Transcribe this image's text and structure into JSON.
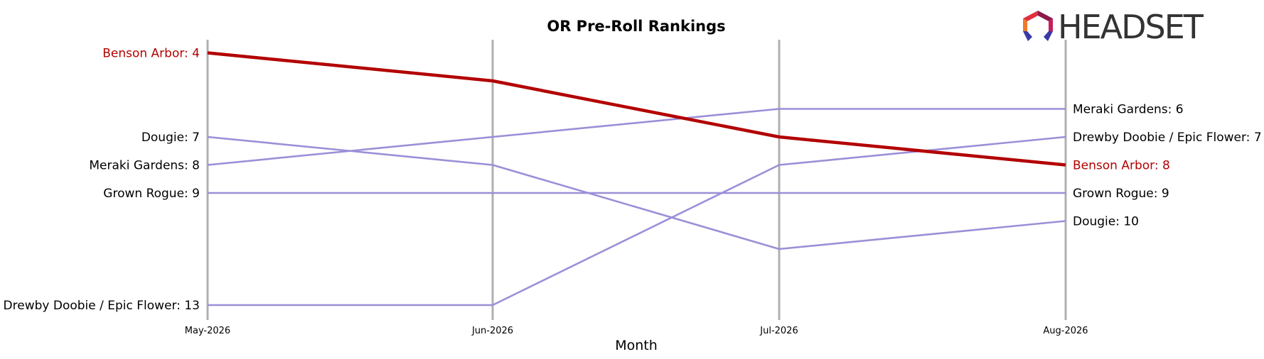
{
  "chart_data": {
    "type": "line",
    "title": "OR Pre-Roll Rankings",
    "xlabel": "Month",
    "ylabel": "",
    "categories": [
      "May-2026",
      "Jun-2026",
      "Jul-2026",
      "Aug-2026"
    ],
    "y_axis": "rank (inverted, 1 at top)",
    "ylim": [
      3.5,
      13.5
    ],
    "grid": "vertical lines at each month",
    "highlight_series": "Benson Arbor",
    "series": [
      {
        "name": "Benson Arbor",
        "values": [
          4,
          5,
          7,
          8
        ],
        "color": "#b30000",
        "highlight": true
      },
      {
        "name": "Meraki Gardens",
        "values": [
          8,
          7,
          6,
          6
        ],
        "color": "#9b8fd8"
      },
      {
        "name": "Drewby Doobie / Epic Flower",
        "values": [
          13,
          13,
          8,
          7
        ],
        "color": "#9b8fd8"
      },
      {
        "name": "Grown Rogue",
        "values": [
          9,
          9,
          9,
          9
        ],
        "color": "#9b8fd8"
      },
      {
        "name": "Dougie",
        "values": [
          7,
          8,
          11,
          10
        ],
        "color": "#9b8fd8"
      }
    ],
    "left_labels": [
      {
        "text": "Benson Arbor: 4",
        "series": "Benson Arbor"
      },
      {
        "text": "Dougie: 7",
        "series": "Dougie"
      },
      {
        "text": "Meraki Gardens: 8",
        "series": "Meraki Gardens"
      },
      {
        "text": "Grown Rogue: 9",
        "series": "Grown Rogue"
      },
      {
        "text": "Drewby Doobie / Epic Flower: 13",
        "series": "Drewby Doobie / Epic Flower"
      }
    ],
    "right_labels": [
      {
        "text": "Meraki Gardens: 6",
        "series": "Meraki Gardens"
      },
      {
        "text": "Drewby Doobie / Epic Flower: 7",
        "series": "Drewby Doobie / Epic Flower"
      },
      {
        "text": "Benson Arbor: 8",
        "series": "Benson Arbor"
      },
      {
        "text": "Grown Rogue: 9",
        "series": "Grown Rogue"
      },
      {
        "text": "Dougie: 10",
        "series": "Dougie"
      }
    ]
  },
  "logo": {
    "text": "HEADSET",
    "icon": "headset-hexagon-logo-icon"
  },
  "colors": {
    "highlight": "#b30000",
    "other": "#9b8fd8",
    "gridline": "#b0b0b0",
    "label_default": "#000000"
  }
}
